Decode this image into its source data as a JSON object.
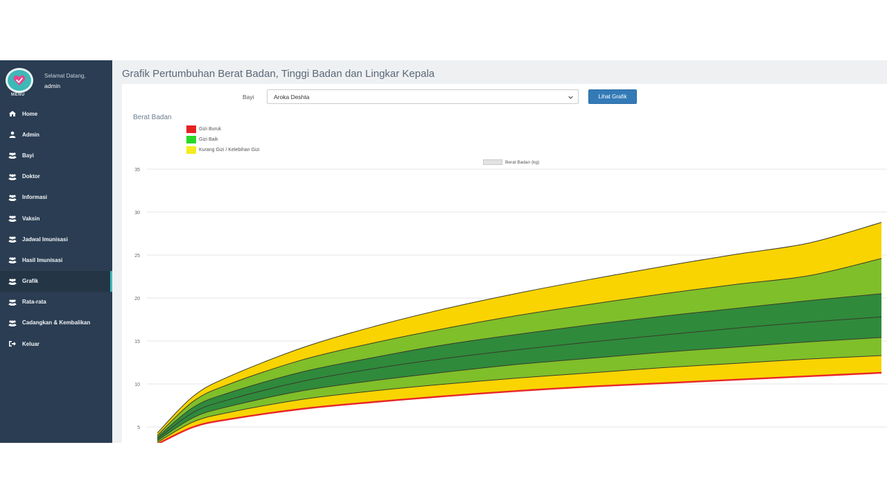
{
  "sidebar": {
    "menu_label": "MENU",
    "welcome": "Selamat Datang,",
    "username": "admin",
    "items": [
      {
        "label": "Home",
        "icon": "home-icon"
      },
      {
        "label": "Admin",
        "icon": "user-icon"
      },
      {
        "label": "Bayi",
        "icon": "users-icon"
      },
      {
        "label": "Doktor",
        "icon": "users-icon"
      },
      {
        "label": "Informasi",
        "icon": "users-icon"
      },
      {
        "label": "Vaksin",
        "icon": "users-icon"
      },
      {
        "label": "Jadwal Imunisasi",
        "icon": "users-icon"
      },
      {
        "label": "Hasil Imunisasi",
        "icon": "users-icon"
      },
      {
        "label": "Grafik",
        "icon": "users-icon",
        "active": true
      },
      {
        "label": "Rata-rata",
        "icon": "users-icon"
      },
      {
        "label": "Cadangkan & Kembalikan",
        "icon": "users-icon"
      },
      {
        "label": "Keluar",
        "icon": "sign-out-icon"
      }
    ]
  },
  "main": {
    "page_title": "Grafik Pertumbuhan Berat Badan, Tinggi Badan dan Lingkar Kepala",
    "bayi_label": "Bayi",
    "bayi_value": "Aroka Deshta",
    "button_label": "Lihat Grafik"
  },
  "legend": [
    {
      "label": "Gizi Buruk",
      "color": "#e52222"
    },
    {
      "label": "Gizi Baik",
      "color": "#27d927"
    },
    {
      "label": "Kurang Gizi / Kelebihan Gizi",
      "color": "#f4ec1d"
    }
  ],
  "chart_data": {
    "type": "area",
    "title": "Berat Badan",
    "series_legend": "Berat Badan (kg)",
    "ylim": [
      3,
      35
    ],
    "yticks": [
      5,
      10,
      15,
      20,
      25,
      30,
      35
    ],
    "grid": true,
    "x": [
      0,
      0.05,
      0.1,
      0.2,
      0.3,
      0.4,
      0.5,
      0.6,
      0.7,
      0.8,
      0.9,
      1.0
    ],
    "series": [
      {
        "values": [
          3.0,
          5.0,
          5.9,
          7.1,
          7.9,
          8.6,
          9.2,
          9.7,
          10.1,
          10.5,
          10.9,
          11.3
        ]
      },
      {
        "values": [
          3.2,
          5.6,
          6.7,
          8.2,
          9.2,
          10.0,
          10.7,
          11.3,
          11.9,
          12.4,
          12.9,
          13.3
        ]
      },
      {
        "values": [
          3.4,
          6.1,
          7.4,
          9.2,
          10.4,
          11.4,
          12.3,
          13.0,
          13.7,
          14.3,
          14.9,
          15.4
        ]
      },
      {
        "values": [
          3.6,
          6.7,
          8.2,
          10.3,
          11.8,
          13.0,
          14.0,
          14.9,
          15.7,
          16.5,
          17.2,
          17.8
        ]
      },
      {
        "values": [
          3.8,
          7.3,
          9.0,
          11.4,
          13.1,
          14.6,
          15.8,
          16.9,
          17.9,
          18.8,
          19.7,
          20.5
        ]
      },
      {
        "values": [
          4.0,
          8.0,
          10.0,
          12.8,
          14.8,
          16.5,
          18.0,
          19.3,
          20.5,
          21.6,
          22.6,
          24.6
        ]
      },
      {
        "values": [
          4.3,
          8.6,
          10.9,
          14.2,
          16.7,
          18.8,
          20.6,
          22.2,
          23.7,
          25.1,
          26.4,
          28.8
        ]
      }
    ],
    "band_colors": [
      "#f9d400",
      "#7fbf2a",
      "#2f8a3c",
      "#2f8a3c",
      "#7fbf2a",
      "#f9d400"
    ],
    "lowest_line_color": "#e8262a"
  }
}
